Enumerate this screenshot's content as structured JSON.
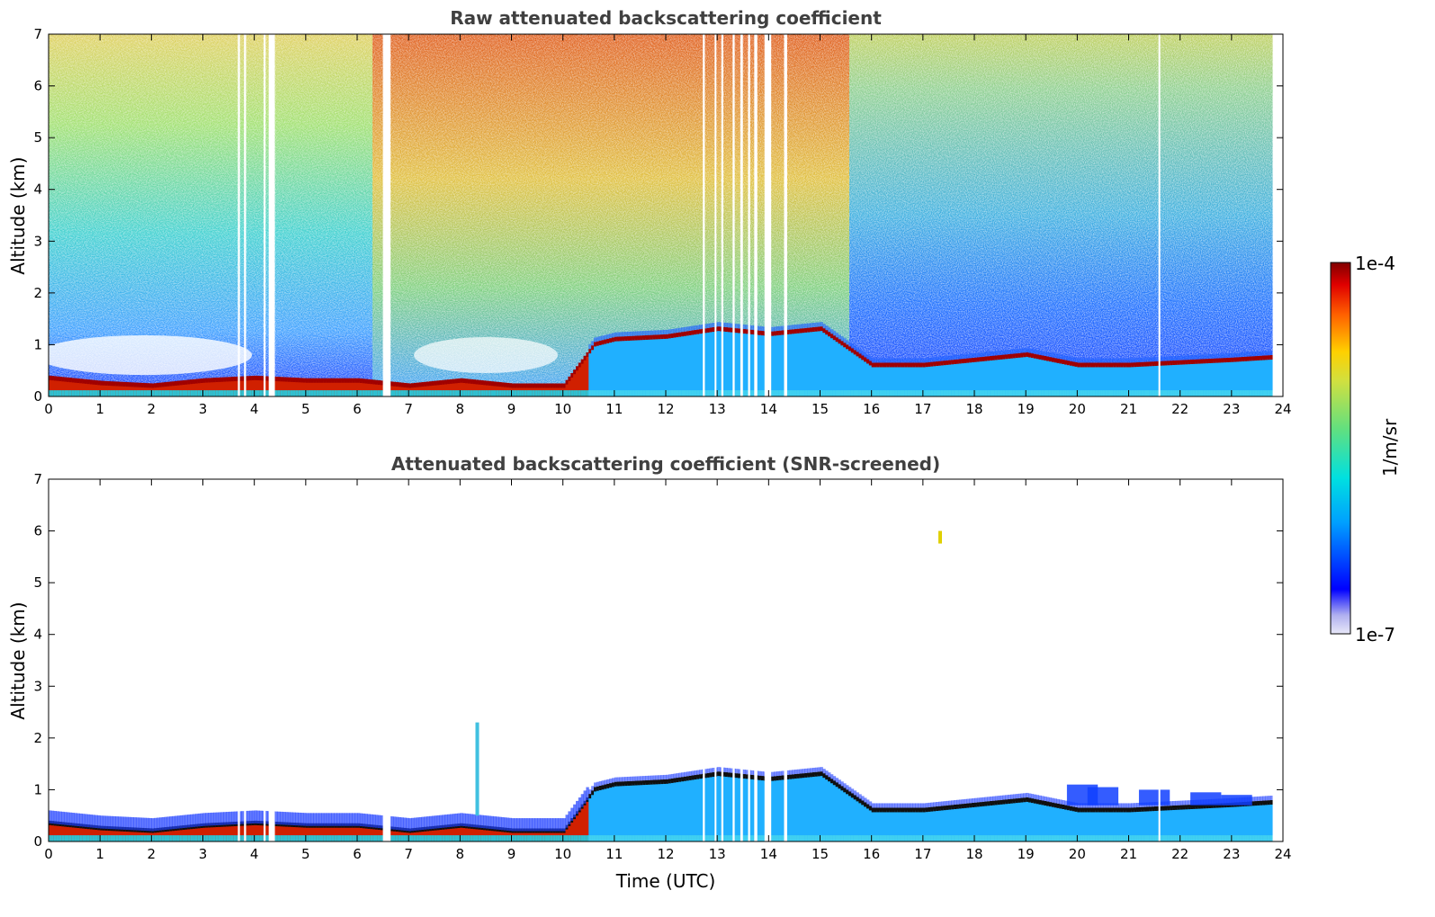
{
  "chart_data": [
    {
      "type": "heatmap",
      "title": "Raw attenuated backscattering coefficient",
      "xlabel": "",
      "ylabel": "Altitude (km)",
      "xlim": [
        0,
        24
      ],
      "ylim": [
        0,
        7
      ],
      "xticks": [
        "0",
        "1",
        "2",
        "3",
        "4",
        "5",
        "6",
        "7",
        "8",
        "9",
        "10",
        "11",
        "12",
        "13",
        "14",
        "15",
        "16",
        "17",
        "18",
        "19",
        "20",
        "21",
        "22",
        "23",
        "24"
      ],
      "yticks": [
        "0",
        "1",
        "2",
        "3",
        "4",
        "5",
        "6",
        "7"
      ],
      "data_gaps_utc": [
        [
          3.68,
          3.72
        ],
        [
          3.8,
          3.84
        ],
        [
          4.18,
          4.22
        ],
        [
          4.28,
          4.4
        ],
        [
          6.5,
          6.65
        ],
        [
          12.72,
          12.76
        ],
        [
          12.95,
          12.98
        ],
        [
          13.08,
          13.12
        ],
        [
          13.3,
          13.34
        ],
        [
          13.45,
          13.5
        ],
        [
          13.6,
          13.64
        ],
        [
          13.72,
          13.78
        ],
        [
          13.92,
          14.05
        ],
        [
          14.3,
          14.36
        ],
        [
          21.58,
          21.6
        ],
        [
          23.8,
          24.0
        ]
      ],
      "boundary_layer_top_km": [
        [
          0,
          0.35
        ],
        [
          1,
          0.25
        ],
        [
          2,
          0.2
        ],
        [
          3,
          0.3
        ],
        [
          4,
          0.35
        ],
        [
          5,
          0.3
        ],
        [
          6,
          0.3
        ],
        [
          7,
          0.2
        ],
        [
          8,
          0.3
        ],
        [
          9,
          0.2
        ],
        [
          10,
          0.2
        ],
        [
          10.6,
          1.0
        ],
        [
          11,
          1.1
        ],
        [
          12,
          1.15
        ],
        [
          13,
          1.3
        ],
        [
          14,
          1.2
        ],
        [
          15,
          1.3
        ],
        [
          16,
          0.6
        ],
        [
          17,
          0.6
        ],
        [
          18,
          0.7
        ],
        [
          19,
          0.8
        ],
        [
          20,
          0.6
        ],
        [
          21,
          0.6
        ],
        [
          22,
          0.65
        ],
        [
          23,
          0.7
        ],
        [
          23.8,
          0.75
        ]
      ]
    },
    {
      "type": "heatmap",
      "title": "Attenuated backscattering coefficient (SNR-screened)",
      "xlabel": "Time (UTC)",
      "ylabel": "Altitude (km)",
      "xlim": [
        0,
        24
      ],
      "ylim": [
        0,
        7
      ],
      "xticks": [
        "0",
        "1",
        "2",
        "3",
        "4",
        "5",
        "6",
        "7",
        "8",
        "9",
        "10",
        "11",
        "12",
        "13",
        "14",
        "15",
        "16",
        "17",
        "18",
        "19",
        "20",
        "21",
        "22",
        "23",
        "24"
      ],
      "yticks": [
        "0",
        "1",
        "2",
        "3",
        "4",
        "5",
        "6",
        "7"
      ]
    }
  ],
  "colorbar": {
    "label": "1/m/sr",
    "max_label": "1e-4",
    "min_label": "1e-7",
    "scale": "log",
    "colors": [
      "#e8e8f8",
      "#b0b0f0",
      "#0000ff",
      "#00a0ff",
      "#00e0e0",
      "#60e080",
      "#d0e040",
      "#ffd000",
      "#ff6000",
      "#e00000",
      "#800000"
    ]
  }
}
